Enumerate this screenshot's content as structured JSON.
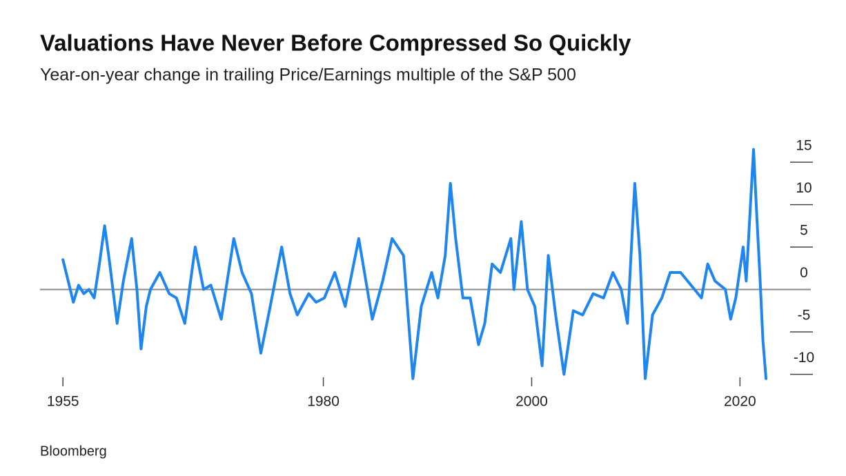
{
  "chart_data": {
    "type": "line",
    "title": "Valuations Have Never Before Compressed So Quickly",
    "subtitle": "Year-on-year change in trailing Price/Earnings multiple of the S&P 500",
    "source": "Bloomberg",
    "x": [
      1955,
      1955.5,
      1956,
      1956.5,
      1957,
      1957.5,
      1958,
      1958.5,
      1959,
      1959.5,
      1960.2,
      1960.8,
      1961.6,
      1962.1,
      1962.5,
      1963,
      1963.4,
      1964.3,
      1965.2,
      1965.9,
      1966.7,
      1967.7,
      1968.5,
      1969.2,
      1970.2,
      1971.4,
      1972.2,
      1973.1,
      1974,
      1974.9,
      1976,
      1976.8,
      1977.5,
      1978.6,
      1979.3,
      1980.1,
      1981.1,
      1982.1,
      1983.4,
      1984.7,
      1985.7,
      1986.6,
      1987.7,
      1988.6,
      1989.4,
      1990.4,
      1991,
      1991.7,
      1992.2,
      1992.7,
      1993.4,
      1994.1,
      1994.9,
      1995.5,
      1996.2,
      1997,
      1998,
      1998.3,
      1999,
      1999.6,
      2000.3,
      2001,
      2001.6,
      2002.3,
      2003.1,
      2004,
      2004.9,
      2005.9,
      2006.9,
      2007.8,
      2008.6,
      2009.2,
      2009.9,
      2010.4,
      2010.9,
      2011.6,
      2012.5,
      2013.3,
      2014.3,
      2015.3,
      2016.3,
      2016.9,
      2017.6,
      2018.6,
      2019.1,
      2019.6,
      2020.3,
      2020.6,
      2021.3,
      2021.6,
      2021.9,
      2022.2,
      2022.5
    ],
    "series": [
      {
        "name": "S&P 500 trailing P/E YoY change",
        "color": "#1f86f0",
        "values": [
          3.5,
          1,
          -1.5,
          0.5,
          -0.5,
          0,
          -1,
          3,
          7.5,
          3,
          -4,
          1,
          6,
          0,
          -7,
          -2,
          0,
          2,
          -0.5,
          -1,
          -4,
          5,
          0,
          0.5,
          -3.5,
          6,
          2,
          -0.5,
          -7.5,
          -2,
          5,
          -0.5,
          -3,
          -0.5,
          -1.5,
          -1,
          2,
          -2,
          6,
          -3.5,
          1,
          6,
          4,
          -10.5,
          -2,
          2,
          -1,
          4,
          12.5,
          6,
          -1,
          -1,
          -6.5,
          -4,
          3,
          2,
          6,
          0,
          8,
          0,
          -2,
          -9,
          4,
          -3,
          -10,
          -2.5,
          -3,
          -0.5,
          -1,
          2,
          0,
          -4,
          12.5,
          4,
          -10.5,
          -3,
          -1,
          2,
          2,
          0.5,
          -1,
          3,
          1,
          0,
          -3.5,
          -1,
          5,
          1,
          16.5,
          9,
          2,
          -6,
          -10.5
        ]
      }
    ],
    "xlim": [
      1952.8,
      2026.8
    ],
    "xticks": [
      1955,
      1980,
      2000,
      2020
    ],
    "ylim": [
      -10.6,
      17.2
    ],
    "yticks": [
      15,
      10,
      5,
      0,
      -5,
      -10
    ]
  }
}
